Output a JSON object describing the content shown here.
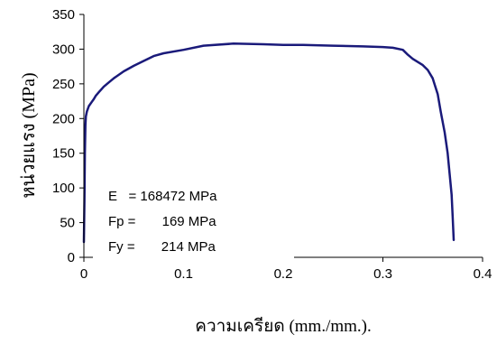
{
  "chart_data": {
    "type": "line",
    "xlabel": "ความเครียด (mm./mm.).",
    "ylabel": "หน่วยแรง (MPa)",
    "xlim": [
      0,
      0.4
    ],
    "ylim": [
      0,
      350
    ],
    "x_ticks": [
      "0",
      "0.1",
      "0.2",
      "0.3",
      "0.4"
    ],
    "y_ticks": [
      "0",
      "50",
      "100",
      "150",
      "200",
      "250",
      "300",
      "350"
    ],
    "grid": false,
    "series": [
      {
        "color": "#1a1a7a",
        "points": [
          [
            0.0,
            22
          ],
          [
            0.0005,
            80
          ],
          [
            0.001,
            150
          ],
          [
            0.0015,
            190
          ],
          [
            0.002,
            203
          ],
          [
            0.003,
            210
          ],
          [
            0.005,
            218
          ],
          [
            0.008,
            224
          ],
          [
            0.01,
            228
          ],
          [
            0.012,
            233
          ],
          [
            0.015,
            238
          ],
          [
            0.02,
            246
          ],
          [
            0.025,
            252
          ],
          [
            0.03,
            258
          ],
          [
            0.04,
            268
          ],
          [
            0.05,
            276
          ],
          [
            0.06,
            283
          ],
          [
            0.07,
            290
          ],
          [
            0.08,
            294
          ],
          [
            0.1,
            299
          ],
          [
            0.12,
            305
          ],
          [
            0.15,
            308
          ],
          [
            0.18,
            307
          ],
          [
            0.2,
            306
          ],
          [
            0.22,
            306
          ],
          [
            0.25,
            305
          ],
          [
            0.28,
            304
          ],
          [
            0.3,
            303
          ],
          [
            0.31,
            302
          ],
          [
            0.32,
            299
          ],
          [
            0.325,
            292
          ],
          [
            0.33,
            286
          ],
          [
            0.34,
            277
          ],
          [
            0.345,
            270
          ],
          [
            0.35,
            258
          ],
          [
            0.355,
            235
          ],
          [
            0.358,
            210
          ],
          [
            0.362,
            180
          ],
          [
            0.365,
            150
          ],
          [
            0.367,
            120
          ],
          [
            0.369,
            90
          ],
          [
            0.37,
            60
          ],
          [
            0.371,
            25
          ]
        ]
      }
    ],
    "annotations": [
      "E   = 168472 MPa",
      "Fp =       169 MPa",
      "Fy =       214 MPa"
    ]
  }
}
